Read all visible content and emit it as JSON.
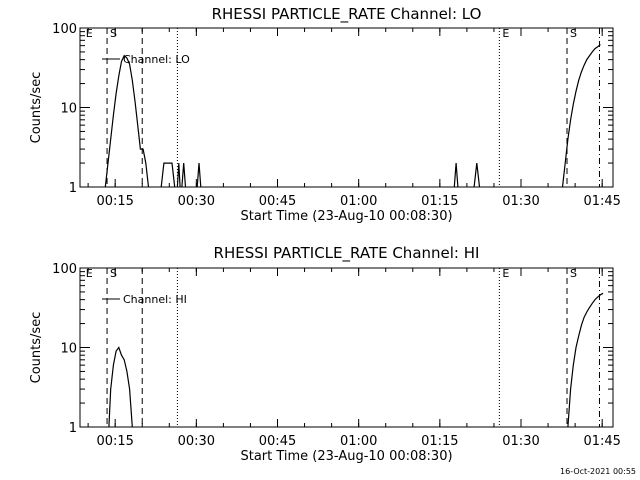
{
  "footer_timestamp": "16-Oct-2021 00:55",
  "chart_data": [
    {
      "type": "line",
      "title": "RHESSI PARTICLE_RATE Channel: LO",
      "xlabel": "Start Time (23-Aug-10 00:08:30)",
      "ylabel": "Counts/sec",
      "yscale": "log",
      "ylim": [
        1,
        100
      ],
      "xlim": [
        "00:08:30",
        "01:47:00"
      ],
      "x_ticks": [
        "00:15",
        "00:30",
        "00:45",
        "01:00",
        "01:15",
        "01:30",
        "01:45"
      ],
      "y_ticks": [
        "1",
        "10",
        "100"
      ],
      "legend": "Channel: LO",
      "markers": [
        {
          "label": "E",
          "time": "00:09:00",
          "style": "none"
        },
        {
          "label": "S",
          "time": "00:13:30",
          "style": "dashed"
        },
        {
          "label": "",
          "time": "00:20:00",
          "style": "dashed"
        },
        {
          "label": "",
          "time": "00:26:30",
          "style": "dotted"
        },
        {
          "label": "E",
          "time": "01:26:00",
          "style": "dotted"
        },
        {
          "label": "S",
          "time": "01:38:30",
          "style": "dashed"
        },
        {
          "label": "",
          "time": "01:44:30",
          "style": "dashdot"
        }
      ],
      "series": [
        {
          "segments": [
            {
              "x": [
                "00:13:10",
                "00:13:40",
                "00:14:10",
                "00:14:40",
                "00:15:10",
                "00:15:40",
                "00:16:10",
                "00:16:40",
                "00:17:10",
                "00:17:40",
                "00:18:10",
                "00:18:40",
                "00:19:10",
                "00:19:40",
                "00:20:10",
                "00:20:40",
                "00:21:10"
              ],
              "y": [
                1,
                2,
                4,
                8,
                15,
                25,
                38,
                45,
                42,
                35,
                22,
                12,
                6,
                3,
                3,
                2,
                1
              ]
            },
            {
              "x": [
                "00:23:30",
                "00:24:00",
                "00:25:30",
                "00:26:00"
              ],
              "y": [
                1,
                2,
                2,
                1
              ]
            },
            {
              "x": [
                "00:26:30",
                "00:26:45",
                "00:27:00"
              ],
              "y": [
                1,
                2,
                1
              ]
            },
            {
              "x": [
                "00:27:20",
                "00:27:40",
                "00:28:00"
              ],
              "y": [
                1,
                2,
                1
              ]
            },
            {
              "x": [
                "00:30:10",
                "00:30:30",
                "00:30:50"
              ],
              "y": [
                1,
                2,
                1
              ]
            },
            {
              "x": [
                "01:17:40",
                "01:18:00",
                "01:18:20"
              ],
              "y": [
                1,
                2,
                1
              ]
            },
            {
              "x": [
                "01:21:20",
                "01:21:50",
                "01:22:20"
              ],
              "y": [
                1,
                2,
                1
              ]
            },
            {
              "x": [
                "01:37:40",
                "01:38:10",
                "01:38:40",
                "01:39:10",
                "01:39:40",
                "01:40:10",
                "01:40:40",
                "01:41:10",
                "01:41:40",
                "01:42:10",
                "01:42:40",
                "01:43:10",
                "01:43:40",
                "01:44:10",
                "01:44:40"
              ],
              "y": [
                1,
                2,
                4,
                7,
                11,
                16,
                22,
                28,
                34,
                40,
                45,
                50,
                55,
                58,
                62
              ]
            }
          ]
        }
      ]
    },
    {
      "type": "line",
      "title": "RHESSI PARTICLE_RATE Channel: HI",
      "xlabel": "Start Time (23-Aug-10 00:08:30)",
      "ylabel": "Counts/sec",
      "yscale": "log",
      "ylim": [
        1,
        100
      ],
      "xlim": [
        "00:08:30",
        "01:47:00"
      ],
      "x_ticks": [
        "00:15",
        "00:30",
        "00:45",
        "01:00",
        "01:15",
        "01:30",
        "01:45"
      ],
      "y_ticks": [
        "1",
        "10",
        "100"
      ],
      "legend": "Channel: HI",
      "markers": [
        {
          "label": "E",
          "time": "00:09:00",
          "style": "none"
        },
        {
          "label": "S",
          "time": "00:13:30",
          "style": "dashed"
        },
        {
          "label": "",
          "time": "00:20:00",
          "style": "dashed"
        },
        {
          "label": "",
          "time": "00:26:30",
          "style": "dotted"
        },
        {
          "label": "E",
          "time": "01:26:00",
          "style": "dotted"
        },
        {
          "label": "S",
          "time": "01:38:30",
          "style": "dashed"
        },
        {
          "label": "",
          "time": "01:44:30",
          "style": "dashdot"
        }
      ],
      "series": [
        {
          "segments": [
            {
              "x": [
                "00:13:50",
                "00:14:10",
                "00:14:40",
                "00:15:10",
                "00:15:40",
                "00:16:10",
                "00:16:40",
                "00:17:10",
                "00:17:40",
                "00:18:10"
              ],
              "y": [
                1,
                3,
                6,
                9,
                10,
                8,
                7,
                5,
                3,
                1
              ]
            },
            {
              "x": [
                "01:38:40",
                "01:39:10",
                "01:39:40",
                "01:40:10",
                "01:40:40",
                "01:41:10",
                "01:41:40",
                "01:42:10",
                "01:42:40",
                "01:43:10",
                "01:43:40",
                "01:44:10",
                "01:44:40",
                "01:45:10"
              ],
              "y": [
                1,
                3,
                6,
                10,
                14,
                19,
                24,
                28,
                32,
                36,
                40,
                43,
                46,
                48
              ]
            }
          ]
        }
      ]
    }
  ]
}
